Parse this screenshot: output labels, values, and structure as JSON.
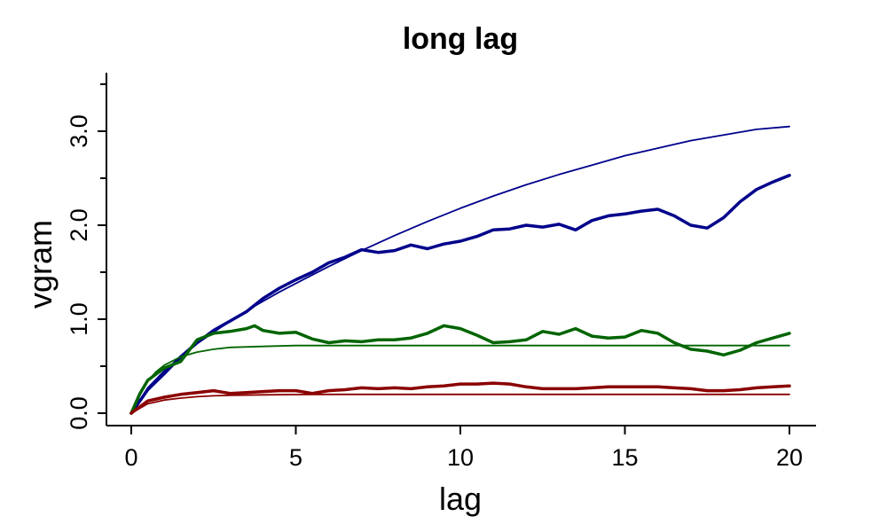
{
  "chart_data": {
    "type": "line",
    "title": "long lag",
    "xlabel": "lag",
    "ylabel": "vgram",
    "xlim": [
      0,
      20
    ],
    "ylim": [
      0,
      3.5
    ],
    "xticks": [
      0,
      5,
      10,
      15,
      20
    ],
    "xtick_labels": [
      "0",
      "5",
      "10",
      "15",
      "20"
    ],
    "yticks": [
      0,
      1,
      2,
      3
    ],
    "ytick_labels": [
      "0.0",
      "1.0",
      "2.0",
      "3.0"
    ],
    "grid": false,
    "series": [
      {
        "kind": "empirical",
        "color": "#00008B",
        "x": [
          0,
          0.5,
          1,
          1.5,
          2,
          2.5,
          3,
          3.5,
          4,
          4.5,
          5,
          5.5,
          6,
          6.5,
          7,
          7.5,
          8,
          8.5,
          9,
          9.5,
          10,
          10.5,
          11,
          11.5,
          12,
          12.5,
          13,
          13.5,
          14,
          14.5,
          15,
          15.5,
          16,
          16.5,
          17,
          17.5,
          18,
          18.5,
          19,
          19.5,
          20
        ],
        "y": [
          0,
          0.25,
          0.42,
          0.6,
          0.75,
          0.88,
          0.98,
          1.08,
          1.22,
          1.33,
          1.42,
          1.5,
          1.6,
          1.66,
          1.74,
          1.71,
          1.73,
          1.79,
          1.75,
          1.8,
          1.83,
          1.88,
          1.95,
          1.96,
          2.0,
          1.98,
          2.01,
          1.95,
          2.05,
          2.1,
          2.12,
          2.15,
          2.17,
          2.1,
          2.0,
          1.97,
          2.08,
          2.25,
          2.38,
          2.46,
          2.53
        ]
      },
      {
        "kind": "model",
        "color": "#00008B",
        "x": [
          0,
          0.5,
          1,
          1.5,
          2,
          2.5,
          3,
          3.5,
          4,
          4.5,
          5,
          6,
          7,
          8,
          9,
          10,
          11,
          12,
          13,
          14,
          15,
          16,
          17,
          18,
          19,
          20
        ],
        "y": [
          0,
          0.27,
          0.45,
          0.6,
          0.74,
          0.86,
          0.98,
          1.09,
          1.19,
          1.29,
          1.38,
          1.56,
          1.73,
          1.89,
          2.04,
          2.18,
          2.31,
          2.43,
          2.54,
          2.64,
          2.74,
          2.82,
          2.9,
          2.96,
          3.02,
          3.05
        ]
      },
      {
        "kind": "empirical",
        "color": "#006400",
        "x": [
          0,
          0.25,
          0.5,
          1,
          1.5,
          2,
          2.5,
          3,
          3.5,
          3.75,
          4,
          4.5,
          5,
          5.5,
          6,
          6.5,
          7,
          7.5,
          8,
          8.5,
          9,
          9.5,
          10,
          10.5,
          11,
          11.5,
          12,
          12.5,
          13,
          13.5,
          14,
          14.5,
          15,
          15.5,
          16,
          16.5,
          17,
          17.5,
          18,
          18.5,
          19,
          19.5,
          20
        ],
        "y": [
          0,
          0.2,
          0.35,
          0.48,
          0.55,
          0.78,
          0.85,
          0.87,
          0.9,
          0.93,
          0.88,
          0.85,
          0.86,
          0.79,
          0.75,
          0.77,
          0.76,
          0.78,
          0.78,
          0.8,
          0.85,
          0.93,
          0.9,
          0.83,
          0.75,
          0.76,
          0.78,
          0.87,
          0.84,
          0.9,
          0.82,
          0.8,
          0.81,
          0.88,
          0.85,
          0.75,
          0.68,
          0.66,
          0.62,
          0.67,
          0.75,
          0.8,
          0.85
        ]
      },
      {
        "kind": "model",
        "color": "#006400",
        "x": [
          0,
          0.25,
          0.5,
          0.75,
          1,
          1.5,
          2,
          2.5,
          3,
          4,
          5,
          6,
          8,
          10,
          12,
          14,
          16,
          18,
          20
        ],
        "y": [
          0,
          0.2,
          0.34,
          0.44,
          0.51,
          0.6,
          0.65,
          0.68,
          0.7,
          0.71,
          0.72,
          0.72,
          0.72,
          0.72,
          0.72,
          0.72,
          0.72,
          0.72,
          0.72
        ]
      },
      {
        "kind": "empirical",
        "color": "#8B0000",
        "x": [
          0,
          0.5,
          1,
          1.5,
          2,
          2.5,
          3,
          3.5,
          4,
          4.5,
          5,
          5.5,
          6,
          6.5,
          7,
          7.5,
          8,
          8.5,
          9,
          9.5,
          10,
          10.5,
          11,
          11.5,
          12,
          12.5,
          13,
          13.5,
          14,
          14.5,
          15,
          15.5,
          16,
          16.5,
          17,
          17.5,
          18,
          18.5,
          19,
          19.5,
          20
        ],
        "y": [
          0,
          0.13,
          0.17,
          0.2,
          0.22,
          0.24,
          0.21,
          0.22,
          0.23,
          0.24,
          0.24,
          0.21,
          0.24,
          0.25,
          0.27,
          0.26,
          0.27,
          0.26,
          0.28,
          0.29,
          0.31,
          0.31,
          0.32,
          0.31,
          0.28,
          0.26,
          0.26,
          0.26,
          0.27,
          0.28,
          0.28,
          0.28,
          0.28,
          0.27,
          0.26,
          0.24,
          0.24,
          0.25,
          0.27,
          0.28,
          0.29
        ]
      },
      {
        "kind": "model",
        "color": "#8B0000",
        "x": [
          0,
          0.5,
          1,
          1.5,
          2,
          2.5,
          3,
          4,
          5,
          6,
          8,
          10,
          12,
          14,
          16,
          18,
          20
        ],
        "y": [
          0,
          0.1,
          0.14,
          0.16,
          0.175,
          0.185,
          0.19,
          0.195,
          0.198,
          0.2,
          0.2,
          0.2,
          0.2,
          0.2,
          0.2,
          0.2,
          0.2
        ]
      }
    ]
  }
}
